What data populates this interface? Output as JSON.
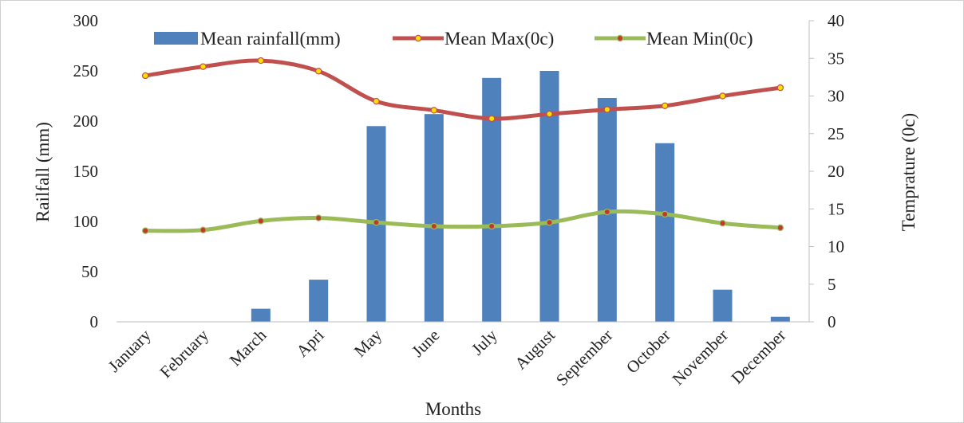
{
  "chart_data": {
    "type": "bar",
    "title": "",
    "categories": [
      "January",
      "February",
      "March",
      "Apri",
      "May",
      "June",
      "July",
      "August",
      "September",
      "October",
      "November",
      "December"
    ],
    "xlabel": "Months",
    "ylabel": "Railfall (mm)",
    "y2label": "Temprature (0c)",
    "ylim": [
      0,
      300
    ],
    "yticks": [
      0,
      50,
      100,
      150,
      200,
      250,
      300
    ],
    "y2lim": [
      0,
      40
    ],
    "y2ticks": [
      0,
      5,
      10,
      15,
      20,
      25,
      30,
      35,
      40
    ],
    "legend": "top",
    "grid": false,
    "series": [
      {
        "name": "Mean rainfall(mm)",
        "kind": "bar",
        "axis": "left",
        "color": "#4F81BD",
        "values": [
          0,
          0,
          13,
          42,
          195,
          207,
          243,
          250,
          223,
          178,
          32,
          5
        ]
      },
      {
        "name": "Mean Max(0c)",
        "kind": "line",
        "axis": "right",
        "color": "#C0504D",
        "marker_color": "#FFE000",
        "values": [
          32.7,
          33.9,
          34.7,
          33.3,
          29.3,
          28.1,
          27.0,
          27.6,
          28.2,
          28.7,
          30.0,
          31.1
        ]
      },
      {
        "name": "Mean Min(0c)",
        "kind": "line",
        "axis": "right",
        "color": "#9BBB59",
        "marker_color": "#C0392B",
        "values": [
          12.1,
          12.2,
          13.4,
          13.8,
          13.2,
          12.7,
          12.7,
          13.2,
          14.6,
          14.3,
          13.1,
          12.5
        ]
      }
    ]
  }
}
